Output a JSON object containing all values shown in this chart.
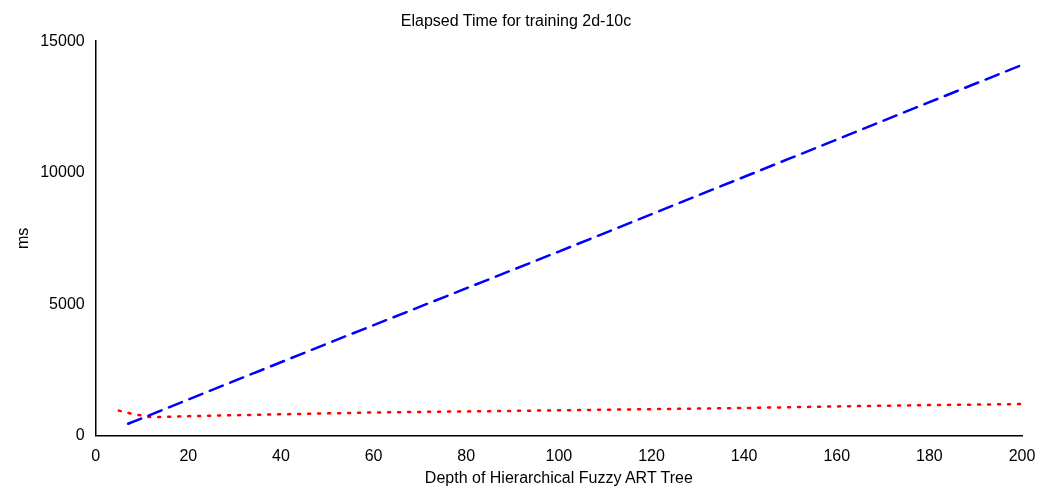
{
  "chart_data": {
    "type": "line",
    "title": "Elapsed Time for training 2d-10c",
    "xlabel": "Depth of Hierarchical Fuzzy ART Tree",
    "ylabel": "ms",
    "xlim": [
      0,
      200
    ],
    "xticks": [
      0,
      20,
      40,
      60,
      80,
      100,
      120,
      140,
      160,
      180,
      200
    ],
    "ylim": [
      0,
      15000
    ],
    "yticks": [
      0,
      5000,
      10000,
      15000
    ],
    "grid": false,
    "legend": false,
    "marker": "none",
    "series": [
      {
        "color": "#0000ff",
        "line_style": "dashed",
        "x": [
          7,
          50,
          100,
          150,
          200
        ],
        "values": [
          450,
          3500,
          7000,
          10550,
          14100
        ]
      },
      {
        "color": "#ff0000",
        "line_style": "dotted",
        "x": [
          5,
          8,
          12,
          20,
          60,
          100,
          140,
          160,
          180,
          200
        ],
        "values": [
          950,
          820,
          700,
          740,
          880,
          960,
          1050,
          1110,
          1160,
          1200
        ]
      }
    ]
  }
}
